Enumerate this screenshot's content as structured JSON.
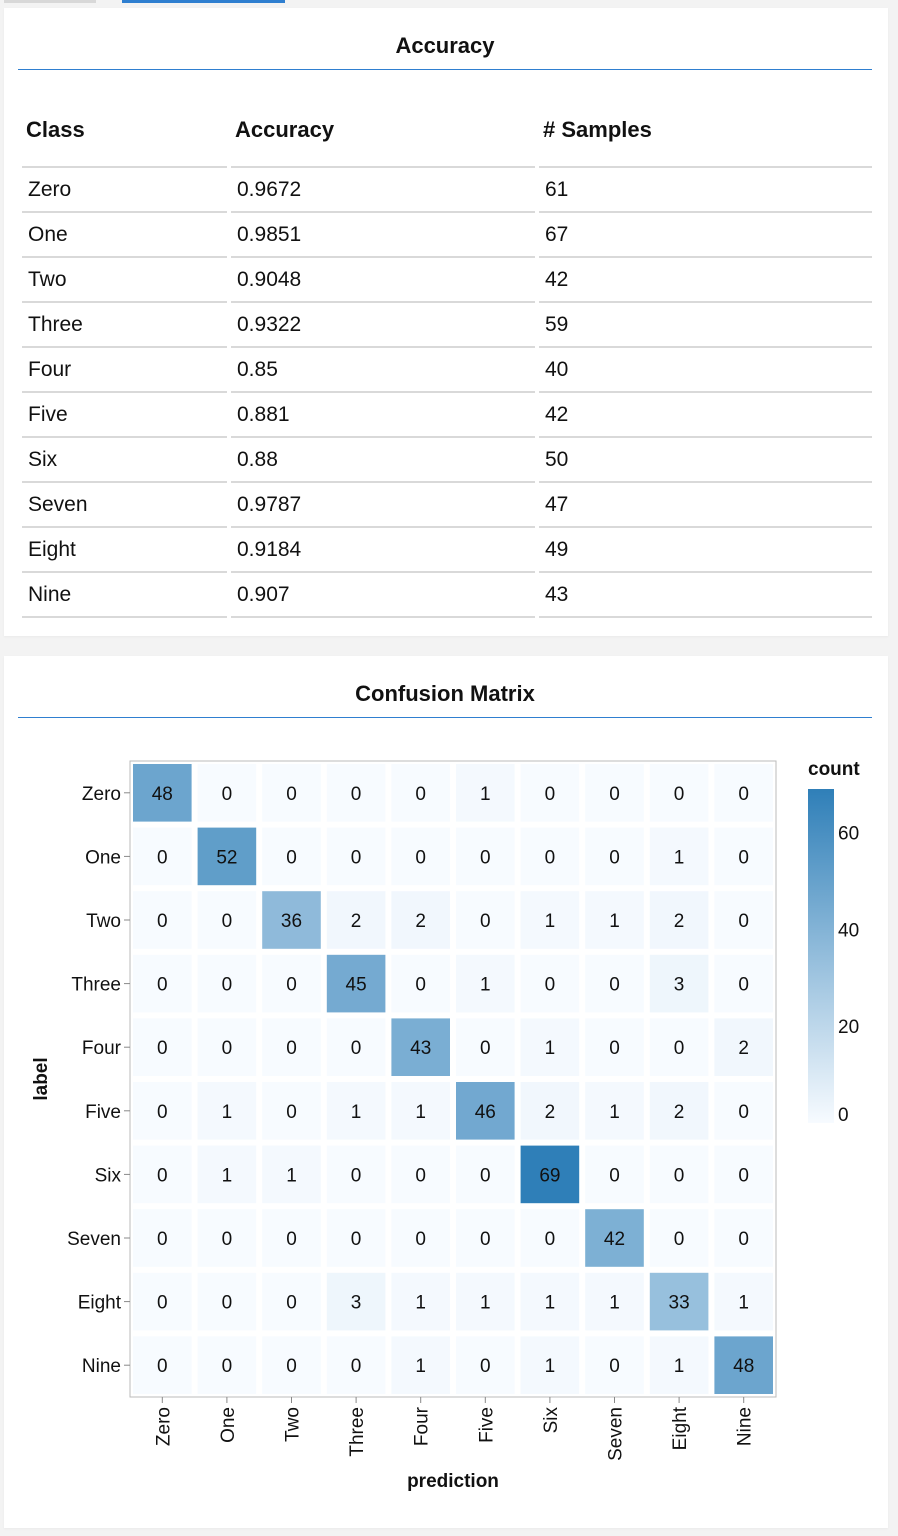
{
  "accuracy_section": {
    "title": "Accuracy",
    "columns": [
      "Class",
      "Accuracy",
      "# Samples"
    ],
    "rows": [
      [
        "Zero",
        "0.9672",
        "61"
      ],
      [
        "One",
        "0.9851",
        "67"
      ],
      [
        "Two",
        "0.9048",
        "42"
      ],
      [
        "Three",
        "0.9322",
        "59"
      ],
      [
        "Four",
        "0.85",
        "40"
      ],
      [
        "Five",
        "0.881",
        "42"
      ],
      [
        "Six",
        "0.88",
        "50"
      ],
      [
        "Seven",
        "0.9787",
        "47"
      ],
      [
        "Eight",
        "0.9184",
        "49"
      ],
      [
        "Nine",
        "0.907",
        "43"
      ]
    ]
  },
  "confusion_section": {
    "title": "Confusion Matrix"
  },
  "colors": {
    "accent": "#2f7fd0",
    "scale_low": "#f7fbff",
    "scale_high": "#2f7fb8"
  },
  "chart_data": {
    "type": "heatmap",
    "title": "",
    "xlabel": "prediction",
    "ylabel": "label",
    "legend_title": "count",
    "legend_ticks": [
      60,
      40,
      20,
      0
    ],
    "legend_placement": "right",
    "color_domain": [
      0,
      69
    ],
    "x_categories": [
      "Zero",
      "One",
      "Two",
      "Three",
      "Four",
      "Five",
      "Six",
      "Seven",
      "Eight",
      "Nine"
    ],
    "y_categories": [
      "Zero",
      "One",
      "Two",
      "Three",
      "Four",
      "Five",
      "Six",
      "Seven",
      "Eight",
      "Nine"
    ],
    "values": [
      [
        48,
        0,
        0,
        0,
        0,
        1,
        0,
        0,
        0,
        0
      ],
      [
        0,
        52,
        0,
        0,
        0,
        0,
        0,
        0,
        1,
        0
      ],
      [
        0,
        0,
        36,
        2,
        2,
        0,
        1,
        1,
        2,
        0
      ],
      [
        0,
        0,
        0,
        45,
        0,
        1,
        0,
        0,
        3,
        0
      ],
      [
        0,
        0,
        0,
        0,
        43,
        0,
        1,
        0,
        0,
        2
      ],
      [
        0,
        1,
        0,
        1,
        1,
        46,
        2,
        1,
        2,
        0
      ],
      [
        0,
        1,
        1,
        0,
        0,
        0,
        69,
        0,
        0,
        0
      ],
      [
        0,
        0,
        0,
        0,
        0,
        0,
        0,
        42,
        0,
        0
      ],
      [
        0,
        0,
        0,
        3,
        1,
        1,
        1,
        1,
        33,
        1
      ],
      [
        0,
        0,
        0,
        0,
        1,
        0,
        1,
        0,
        1,
        48
      ]
    ]
  }
}
